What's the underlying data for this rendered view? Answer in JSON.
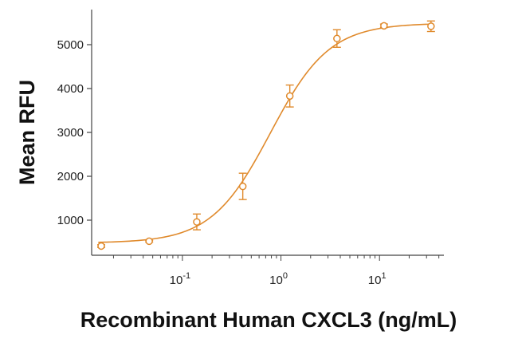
{
  "chart_data": {
    "type": "scatter",
    "xlabel": "Recombinant Human CXCL3 (ng/mL)",
    "ylabel": "Mean RFU",
    "x_scale": "log",
    "xlim": [
      0.012,
      45
    ],
    "ylim": [
      200,
      5800
    ],
    "x_ticks": [
      {
        "value": 0.1,
        "base": "10",
        "exp": "-1"
      },
      {
        "value": 1,
        "base": "10",
        "exp": "0"
      },
      {
        "value": 10,
        "base": "10",
        "exp": "1"
      }
    ],
    "y_ticks": [
      1000,
      2000,
      3000,
      4000,
      5000
    ],
    "grid": false,
    "series": [
      {
        "color": "#e08a2c",
        "points": [
          {
            "x": 0.015,
            "y": 410,
            "err": 30
          },
          {
            "x": 0.046,
            "y": 520,
            "err": 20
          },
          {
            "x": 0.14,
            "y": 960,
            "err": 180
          },
          {
            "x": 0.41,
            "y": 1770,
            "err": 300
          },
          {
            "x": 1.23,
            "y": 3830,
            "err": 250
          },
          {
            "x": 3.7,
            "y": 5140,
            "err": 200
          },
          {
            "x": 11.1,
            "y": 5430,
            "err": 40
          },
          {
            "x": 33.3,
            "y": 5420,
            "err": 120
          }
        ],
        "fit": {
          "model": "4PL",
          "bottom": 480,
          "top": 5490,
          "ec50": 0.78,
          "hill": 1.45
        }
      }
    ]
  }
}
